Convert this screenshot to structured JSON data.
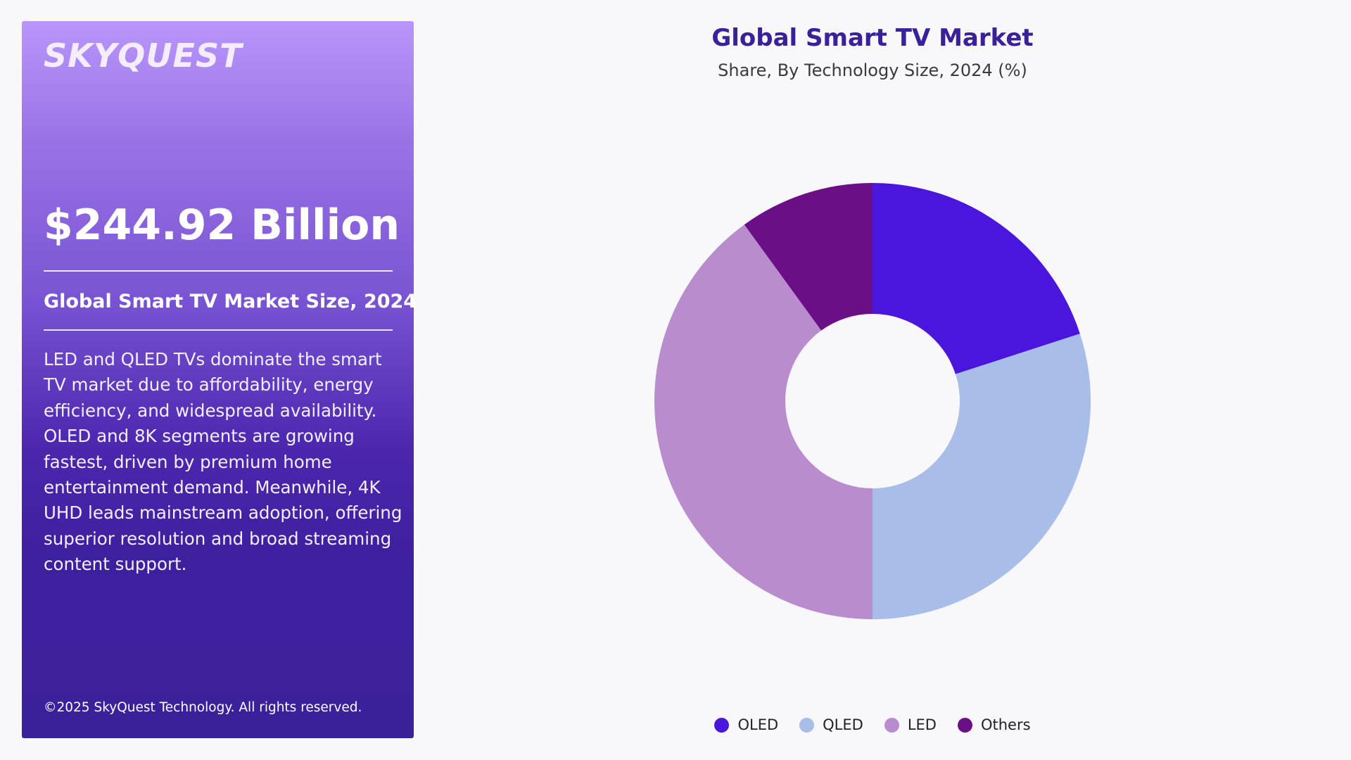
{
  "panel": {
    "logo": "SKYQUEST",
    "market_value": "$244.92 Billion",
    "market_label": "Global Smart TV Market Size, 2024",
    "description": "LED and QLED TVs dominate the smart TV market due to affordability, energy efficiency, and widespread availability. OLED and 8K segments are growing fastest, driven by premium home entertainment demand. Meanwhile, 4K UHD leads mainstream adoption, offering superior resolution and broad streaming content support.",
    "copyright": "©2025 SkyQuest Technology. All rights reserved."
  },
  "chart_data": {
    "type": "pie",
    "variant": "donut",
    "title": "Global Smart TV Market",
    "subtitle": "Share, By Technology Size, 2024 (%)",
    "legend_position": "bottom",
    "categories": [
      "OLED",
      "QLED",
      "LED",
      "Others"
    ],
    "values": [
      20,
      30,
      40,
      10
    ],
    "colors": [
      "#4a15dd",
      "#a8bde7",
      "#b98dcd",
      "#6a0f86"
    ]
  }
}
